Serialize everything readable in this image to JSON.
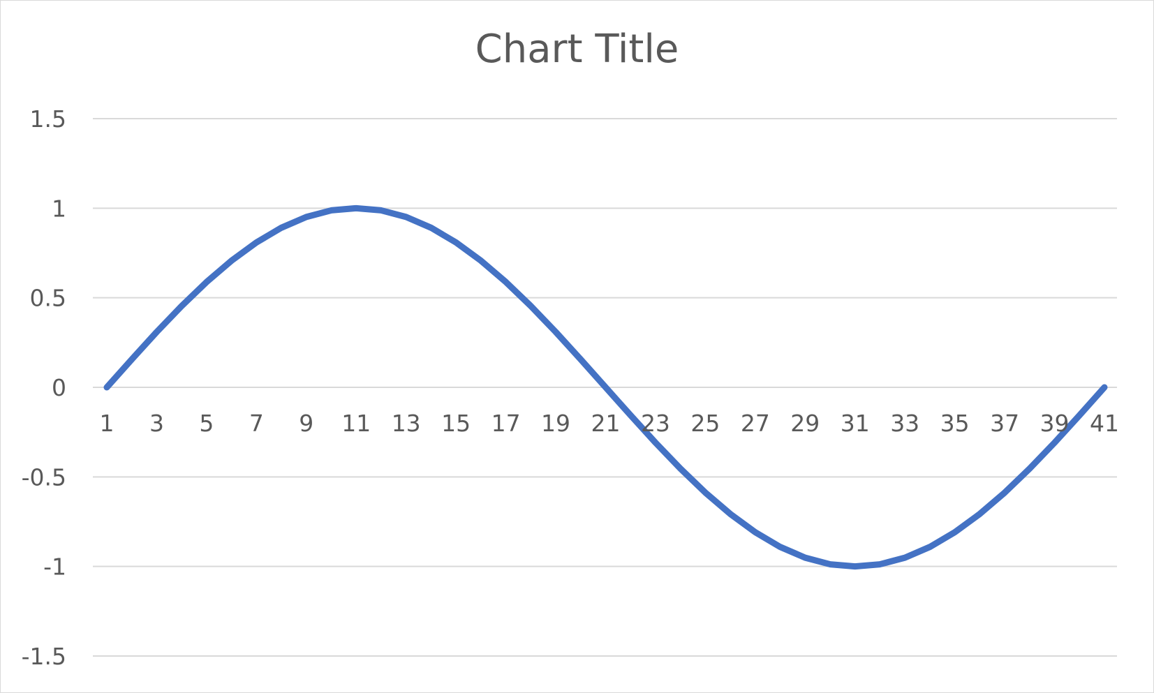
{
  "chart_data": {
    "type": "line",
    "title": "Chart Title",
    "xlabel": "",
    "ylabel": "",
    "x": [
      1,
      2,
      3,
      4,
      5,
      6,
      7,
      8,
      9,
      10,
      11,
      12,
      13,
      14,
      15,
      16,
      17,
      18,
      19,
      20,
      21,
      22,
      23,
      24,
      25,
      26,
      27,
      28,
      29,
      30,
      31,
      32,
      33,
      34,
      35,
      36,
      37,
      38,
      39,
      40,
      41
    ],
    "x_tick_labels": [
      "1",
      "3",
      "5",
      "7",
      "9",
      "11",
      "13",
      "15",
      "17",
      "19",
      "21",
      "23",
      "25",
      "27",
      "29",
      "31",
      "33",
      "35",
      "37",
      "39",
      "41"
    ],
    "series": [
      {
        "values": [
          0,
          0.156,
          0.309,
          0.454,
          0.588,
          0.707,
          0.809,
          0.891,
          0.951,
          0.988,
          1.0,
          0.988,
          0.951,
          0.891,
          0.809,
          0.707,
          0.588,
          0.454,
          0.309,
          0.156,
          0,
          -0.156,
          -0.309,
          -0.454,
          -0.588,
          -0.707,
          -0.809,
          -0.891,
          -0.951,
          -0.988,
          -1.0,
          -0.988,
          -0.951,
          -0.891,
          -0.809,
          -0.707,
          -0.588,
          -0.454,
          -0.309,
          -0.156,
          0
        ],
        "color": "#4472C4"
      }
    ],
    "ylim": [
      -1.5,
      1.5
    ],
    "y_ticks": [
      1.5,
      1,
      0.5,
      0,
      -0.5,
      -1,
      -1.5
    ],
    "y_tick_labels": [
      "1.5",
      "1",
      "0.5",
      "0",
      "-0.5",
      "-1",
      "-1.5"
    ],
    "grid": true,
    "legend": "none",
    "colors": {
      "line": "#4472C4",
      "grid": "#d9d9d9",
      "text": "#595959"
    }
  }
}
